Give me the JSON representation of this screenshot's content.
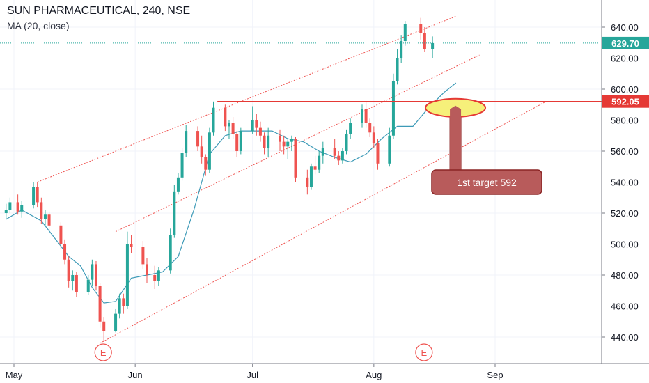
{
  "header": {
    "symbol_line": "SUN PHARMACEUTICAL, 240, NSE",
    "indicator_line": "MA (20, close)"
  },
  "colors": {
    "up": "#26a69a",
    "down": "#ef5350",
    "ma": "#3d9ab7",
    "channel": "#ef5350",
    "resistance": "#e53935",
    "last_price_tag": "#26a69a",
    "callout_fill": "#b85b5b",
    "ellipse_fill": "#f6f07a"
  },
  "chart_data": {
    "type": "candlestick",
    "timeframe": "240",
    "x_labels": [
      "May",
      "Jun",
      "Jul",
      "Aug",
      "Sep"
    ],
    "x_label_dates": [
      "2019-05-01",
      "2019-06-01",
      "2019-07-01",
      "2019-08-01",
      "2019-09-01"
    ],
    "ylim": [
      425,
      650
    ],
    "y_ticks": [
      440,
      460,
      480,
      500,
      520,
      540,
      560,
      580,
      600,
      620,
      640
    ],
    "y_tick_labels": [
      "440.00",
      "460.00",
      "480.00",
      "500.00",
      "520.00",
      "540.00",
      "560.00",
      "580.00",
      "600.00",
      "620.00",
      "640.00"
    ],
    "last_price": 629.7,
    "last_price_label": "629.70",
    "resistance": {
      "price": 592.05,
      "label": "592.05",
      "from": "2019-06-22",
      "to": "2019-09-15"
    },
    "channel_lines": [
      {
        "from": [
          "2019-05-07",
          540
        ],
        "to": [
          "2019-08-22",
          647
        ]
      },
      {
        "from": [
          "2019-05-27",
          508
        ],
        "to": [
          "2019-08-28",
          622
        ]
      },
      {
        "from": [
          "2019-05-23",
          436
        ],
        "to": [
          "2019-09-14",
          592
        ]
      }
    ],
    "ma_path": [
      [
        "2019-04-29",
        516
      ],
      [
        "2019-05-03",
        522
      ],
      [
        "2019-05-08",
        515
      ],
      [
        "2019-05-12",
        502
      ],
      [
        "2019-05-15",
        492
      ],
      [
        "2019-05-18",
        486
      ],
      [
        "2019-05-21",
        472
      ],
      [
        "2019-05-24",
        462
      ],
      [
        "2019-05-27",
        463
      ],
      [
        "2019-05-31",
        478
      ],
      [
        "2019-06-04",
        480
      ],
      [
        "2019-06-08",
        482
      ],
      [
        "2019-06-12",
        492
      ],
      [
        "2019-06-16",
        522
      ],
      [
        "2019-06-20",
        558
      ],
      [
        "2019-06-24",
        570
      ],
      [
        "2019-06-28",
        573
      ],
      [
        "2019-07-02",
        573
      ],
      [
        "2019-07-06",
        573
      ],
      [
        "2019-07-10",
        568
      ],
      [
        "2019-07-14",
        566
      ],
      [
        "2019-07-18",
        560
      ],
      [
        "2019-07-22",
        556
      ],
      [
        "2019-07-26",
        553
      ],
      [
        "2019-07-30",
        558
      ],
      [
        "2019-08-03",
        568
      ],
      [
        "2019-08-07",
        576
      ],
      [
        "2019-08-11",
        576
      ],
      [
        "2019-08-15",
        588
      ],
      [
        "2019-08-19",
        598
      ],
      [
        "2019-08-22",
        604
      ]
    ],
    "candles": [
      [
        "2019-04-29",
        520,
        526,
        516,
        522
      ],
      [
        "2019-04-30",
        522,
        530,
        520,
        527
      ],
      [
        "2019-05-02",
        527,
        532,
        519,
        521
      ],
      [
        "2019-05-03",
        521,
        528,
        517,
        525
      ],
      [
        "2019-05-06",
        525,
        540,
        523,
        537
      ],
      [
        "2019-05-07",
        537,
        540,
        524,
        527
      ],
      [
        "2019-05-08",
        527,
        530,
        513,
        516
      ],
      [
        "2019-05-09",
        516,
        522,
        512,
        519
      ],
      [
        "2019-05-10",
        519,
        521,
        509,
        512
      ],
      [
        "2019-05-13",
        512,
        514,
        497,
        500
      ],
      [
        "2019-05-14",
        500,
        503,
        487,
        490
      ],
      [
        "2019-05-15",
        490,
        492,
        472,
        476
      ],
      [
        "2019-05-16",
        476,
        483,
        470,
        480
      ],
      [
        "2019-05-17",
        480,
        482,
        466,
        469
      ],
      [
        "2019-05-20",
        469,
        480,
        467,
        477
      ],
      [
        "2019-05-21",
        477,
        490,
        473,
        487
      ],
      [
        "2019-05-22",
        487,
        489,
        470,
        473
      ],
      [
        "2019-05-23",
        473,
        475,
        446,
        450
      ],
      [
        "2019-05-24",
        450,
        453,
        437,
        444
      ],
      [
        "2019-05-27",
        444,
        458,
        443,
        455
      ],
      [
        "2019-05-28",
        455,
        468,
        452,
        465
      ],
      [
        "2019-05-29",
        465,
        468,
        455,
        460
      ],
      [
        "2019-05-30",
        460,
        508,
        458,
        500
      ],
      [
        "2019-05-31",
        500,
        506,
        494,
        498
      ],
      [
        "2019-06-03",
        498,
        502,
        484,
        487
      ],
      [
        "2019-06-04",
        487,
        491,
        475,
        480
      ],
      [
        "2019-06-06",
        480,
        486,
        471,
        476
      ],
      [
        "2019-06-07",
        476,
        485,
        473,
        483
      ],
      [
        "2019-06-10",
        483,
        510,
        481,
        506
      ],
      [
        "2019-06-11",
        506,
        538,
        504,
        534
      ],
      [
        "2019-06-12",
        534,
        546,
        532,
        543
      ],
      [
        "2019-06-13",
        543,
        562,
        541,
        559
      ],
      [
        "2019-06-14",
        559,
        577,
        556,
        573
      ],
      [
        "2019-06-17",
        573,
        576,
        560,
        563
      ],
      [
        "2019-06-18",
        563,
        570,
        552,
        556
      ],
      [
        "2019-06-19",
        556,
        558,
        544,
        548
      ],
      [
        "2019-06-20",
        548,
        575,
        546,
        572
      ],
      [
        "2019-06-21",
        572,
        592,
        570,
        588
      ],
      [
        "2019-06-24",
        588,
        590,
        573,
        576
      ],
      [
        "2019-06-25",
        576,
        580,
        568,
        578
      ],
      [
        "2019-06-26",
        578,
        582,
        568,
        571
      ],
      [
        "2019-06-27",
        571,
        573,
        556,
        560
      ],
      [
        "2019-06-28",
        560,
        575,
        558,
        573
      ],
      [
        "2019-07-01",
        573,
        589,
        571,
        580
      ],
      [
        "2019-07-02",
        580,
        584,
        570,
        575
      ],
      [
        "2019-07-03",
        575,
        579,
        566,
        570
      ],
      [
        "2019-07-04",
        570,
        572,
        558,
        562
      ],
      [
        "2019-07-05",
        562,
        575,
        556,
        570
      ],
      [
        "2019-07-08",
        570,
        574,
        560,
        566
      ],
      [
        "2019-07-09",
        566,
        570,
        558,
        563
      ],
      [
        "2019-07-10",
        563,
        568,
        555,
        566
      ],
      [
        "2019-07-11",
        566,
        570,
        560,
        568
      ],
      [
        "2019-07-12",
        568,
        569,
        540,
        543
      ],
      [
        "2019-07-15",
        543,
        548,
        532,
        537
      ],
      [
        "2019-07-16",
        537,
        552,
        535,
        550
      ],
      [
        "2019-07-17",
        550,
        557,
        545,
        548
      ],
      [
        "2019-07-18",
        548,
        560,
        546,
        557
      ],
      [
        "2019-07-19",
        557,
        566,
        552,
        562
      ],
      [
        "2019-07-22",
        562,
        568,
        555,
        557
      ],
      [
        "2019-07-23",
        557,
        560,
        551,
        554
      ],
      [
        "2019-07-24",
        554,
        562,
        552,
        560
      ],
      [
        "2019-07-25",
        560,
        574,
        558,
        571
      ],
      [
        "2019-07-26",
        571,
        581,
        568,
        578
      ],
      [
        "2019-07-29",
        578,
        590,
        575,
        587
      ],
      [
        "2019-07-30",
        587,
        592,
        575,
        578
      ],
      [
        "2019-07-31",
        578,
        581,
        569,
        572
      ],
      [
        "2019-08-01",
        572,
        576,
        562,
        565
      ],
      [
        "2019-08-02",
        565,
        568,
        548,
        552
      ],
      [
        "2019-08-05",
        552,
        575,
        550,
        570
      ],
      [
        "2019-08-06",
        570,
        610,
        568,
        605
      ],
      [
        "2019-08-07",
        605,
        626,
        603,
        620
      ],
      [
        "2019-08-08",
        620,
        635,
        617,
        631
      ],
      [
        "2019-08-09",
        631,
        644,
        628,
        642
      ],
      [
        "2019-08-13",
        642,
        646,
        632,
        636
      ],
      [
        "2019-08-14",
        636,
        640,
        624,
        626
      ],
      [
        "2019-08-16",
        626,
        634,
        620,
        629.7
      ]
    ],
    "annotations": {
      "earnings_markers": [
        {
          "label": "E",
          "date": "2019-05-24"
        },
        {
          "label": "E",
          "date": "2019-08-14"
        }
      ],
      "target_callout": {
        "label": "1st target 592",
        "price": 592,
        "anchor_date": "2019-08-24"
      }
    }
  }
}
